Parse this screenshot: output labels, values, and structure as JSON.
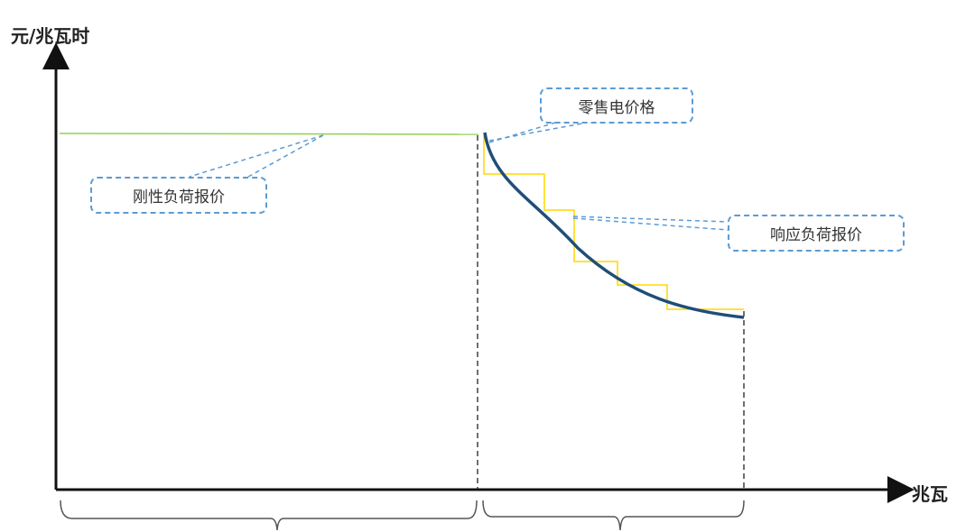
{
  "yaxis_label": "元/兆瓦时",
  "xaxis_label": "兆瓦",
  "callouts": {
    "retail_price": "零售电价格",
    "rigid_load_bid": "刚性负荷报价",
    "responsive_load_bid": "响应负荷报价"
  },
  "colors": {
    "rigid_line": "#92d050",
    "step_line": "#ffd700",
    "curve": "#1f4e79",
    "callout_border": "#5b9bd5"
  }
}
